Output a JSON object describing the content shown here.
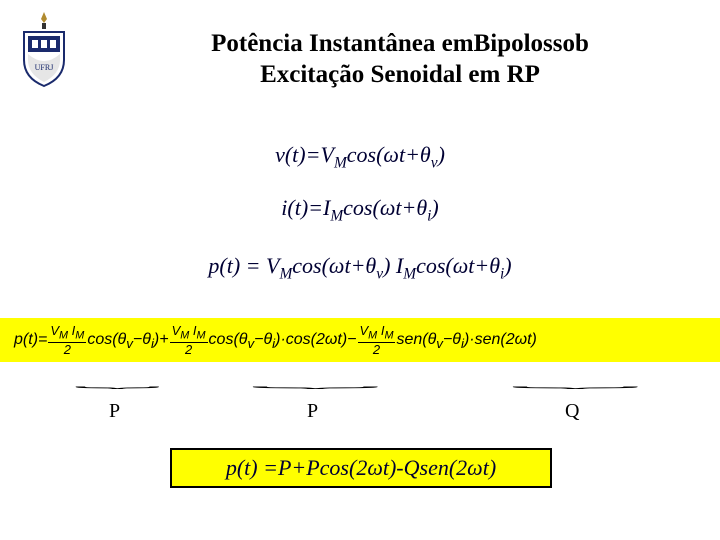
{
  "title_line1": "Potência Instantânea emBipolossob",
  "title_line2": "Excitação Senoidal em RP",
  "eq1_html": "<span style='font-style:italic'>v</span>(t)=<span style='font-style:italic'>V</span><span class='sub'>M</span>cos(ωt+θ<span class='sub'>v</span>)",
  "eq2_html": "<span style='font-style:italic'>i</span>(<span style='font-style:italic'>t</span>)=<span style='font-style:italic'>I</span><span class='sub'>M</span>cos(ωt+θ<span class='sub'>i</span>)",
  "eq3_html": "<span style='font-style:italic'>p</span>(<span style='font-style:italic'>t</span>) = <span style='font-style:italic'>V</span><span class='sub'>M</span>cos(ωt+θ<span class='sub'>v</span>) <span style='font-style:italic'>I</span><span class='sub'>M</span>cos(ωt+θ<span class='sub'>i</span>)",
  "long_eq": {
    "lhs": "p(t)=",
    "frac_num": "V<sub>M</sub> I<sub>M</sub>",
    "frac_den": "2",
    "t1": "cos(θ<sub>v</sub>−θ<sub>i</sub>)+",
    "t2": "cos(θ<sub>v</sub>−θ<sub>i</sub>)·cos(2ωt)−",
    "t3": "sen(θ<sub>v</sub>−θ<sub>i</sub>)·sen(2ωt)"
  },
  "labels": {
    "p1": "P",
    "p2": "P",
    "q": "Q"
  },
  "final_html": "<span style='font-style:italic'>p</span>(<span style='font-style:italic'>t</span>) =P+Pcos(2ω<span style='font-style:italic'>t</span>)-Qsen(2ω<span style='font-style:italic'>t</span>)",
  "colors": {
    "bg": "#ffffff",
    "highlight": "#ffff00",
    "text_blue": "#000033"
  }
}
